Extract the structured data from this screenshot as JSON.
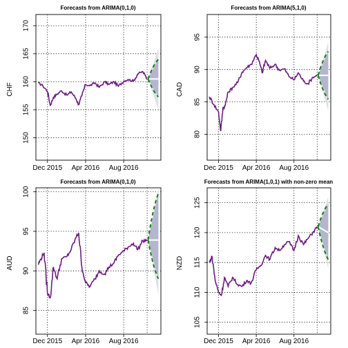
{
  "colors": {
    "series": "#6a1b7d",
    "forecast_mean": "#ffffff",
    "pi80": "#b3b6cc",
    "pi95": "#dfe0e8",
    "pi80_dashed": "#1a7a1a",
    "grid": "#000000"
  },
  "chart_data": [
    {
      "type": "line",
      "title": "Forecasts from ARIMA(0,1,0)",
      "ylabel": "CHF",
      "xlabel": "",
      "x_ticks": [
        "Dec 2015",
        "Apr 2016",
        "Aug 2016"
      ],
      "y_ticks": [
        150,
        155,
        160,
        165,
        170
      ],
      "ylim": [
        146,
        172
      ],
      "grid": true,
      "x": [
        "2015-11-01",
        "2015-11-16",
        "2015-12-01",
        "2015-12-10",
        "2015-12-20",
        "2016-01-01",
        "2016-01-15",
        "2016-02-01",
        "2016-02-15",
        "2016-03-01",
        "2016-03-10",
        "2016-03-20",
        "2016-04-01",
        "2016-04-15",
        "2016-05-01",
        "2016-05-15",
        "2016-06-01",
        "2016-06-15",
        "2016-07-01",
        "2016-07-15",
        "2016-08-01",
        "2016-08-15",
        "2016-09-01",
        "2016-09-15",
        "2016-10-01",
        "2016-10-15"
      ],
      "values": [
        159.8,
        159.3,
        158.3,
        155.8,
        157.2,
        157.8,
        158.4,
        157.6,
        158.2,
        157.0,
        155.9,
        157.5,
        159.5,
        159.3,
        159.8,
        159.0,
        160.0,
        159.5,
        160.0,
        159.2,
        160.1,
        160.4,
        160.1,
        161.4,
        161.8,
        160.5
      ],
      "forecast": {
        "x": [
          "2016-10-18",
          "2016-11-20"
        ],
        "mean": [
          160.5,
          160.5
        ],
        "lo80": [
          160.5,
          157.3
        ],
        "hi80": [
          160.5,
          164.0
        ],
        "lo95": [
          160.5,
          155.0
        ],
        "hi95": [
          160.5,
          166.0
        ]
      }
    },
    {
      "type": "line",
      "title": "Forecasts from ARIMA(5,1,0)",
      "ylabel": "CAD",
      "xlabel": "",
      "x_ticks": [
        "Dec 2015",
        "Apr 2016",
        "Aug 2016"
      ],
      "y_ticks": [
        80,
        85,
        90,
        95
      ],
      "ylim": [
        76,
        98.5
      ],
      "grid": true,
      "x": [
        "2015-11-01",
        "2015-11-16",
        "2015-12-01",
        "2015-12-08",
        "2015-12-15",
        "2015-12-22",
        "2016-01-01",
        "2016-01-15",
        "2016-02-01",
        "2016-02-15",
        "2016-03-01",
        "2016-03-15",
        "2016-04-01",
        "2016-04-10",
        "2016-04-20",
        "2016-05-01",
        "2016-05-15",
        "2016-06-01",
        "2016-06-15",
        "2016-07-01",
        "2016-07-15",
        "2016-08-01",
        "2016-08-15",
        "2016-09-01",
        "2016-09-15",
        "2016-10-01",
        "2016-10-15"
      ],
      "values": [
        85.8,
        84.6,
        83.4,
        80.5,
        84.0,
        84.4,
        86.5,
        87.2,
        88.0,
        89.6,
        90.3,
        90.8,
        92.3,
        91.3,
        89.5,
        91.4,
        90.2,
        90.8,
        89.9,
        90.1,
        89.0,
        88.4,
        89.5,
        88.2,
        87.8,
        88.8,
        89.1
      ],
      "forecast": {
        "x": [
          "2016-10-18",
          "2016-11-20"
        ],
        "mean": [
          89.1,
          89.1
        ],
        "lo80": [
          89.1,
          85.4
        ],
        "hi80": [
          89.1,
          92.8
        ],
        "lo95": [
          89.1,
          83.6
        ],
        "hi95": [
          89.1,
          94.2
        ]
      }
    },
    {
      "type": "line",
      "title": "Forecasts from ARIMA(0,1,0)",
      "ylabel": "AUD",
      "xlabel": "",
      "x_ticks": [
        "Dec 2015",
        "Apr 2016",
        "Aug 2016"
      ],
      "y_ticks": [
        85,
        90,
        95,
        100
      ],
      "ylim": [
        82,
        100.5
      ],
      "grid": true,
      "x": [
        "2015-11-01",
        "2015-11-10",
        "2015-11-20",
        "2015-12-01",
        "2015-12-10",
        "2015-12-20",
        "2016-01-01",
        "2016-01-15",
        "2016-02-01",
        "2016-02-15",
        "2016-03-01",
        "2016-03-10",
        "2016-03-20",
        "2016-04-01",
        "2016-04-15",
        "2016-05-01",
        "2016-05-15",
        "2016-06-01",
        "2016-06-15",
        "2016-07-01",
        "2016-07-15",
        "2016-08-01",
        "2016-08-15",
        "2016-09-01",
        "2016-09-15",
        "2016-10-01",
        "2016-10-15"
      ],
      "values": [
        90.8,
        91.5,
        92.3,
        87.2,
        86.6,
        90.5,
        89.0,
        91.5,
        91.8,
        92.7,
        94.2,
        94.8,
        90.5,
        88.5,
        88.0,
        89.0,
        90.0,
        89.6,
        90.5,
        91.0,
        92.0,
        92.5,
        93.0,
        93.5,
        92.7,
        93.8,
        93.9
      ],
      "forecast": {
        "x": [
          "2016-10-18",
          "2016-11-20"
        ],
        "mean": [
          93.9,
          93.9
        ],
        "lo80": [
          93.9,
          89.0
        ],
        "hi80": [
          93.9,
          99.8
        ],
        "lo95": [
          93.9,
          87.0
        ],
        "hi95": [
          93.9,
          100.5
        ]
      }
    },
    {
      "type": "line",
      "title": "Forecasts from ARIMA(1,0,1) with non-zero mean",
      "ylabel": "NZD",
      "xlabel": "",
      "x_ticks": [
        "Dec 2015",
        "Apr 2016",
        "Aug 2016"
      ],
      "y_ticks": [
        105,
        110,
        115,
        120,
        125
      ],
      "ylim": [
        103,
        127.5
      ],
      "grid": true,
      "x": [
        "2015-11-01",
        "2015-11-10",
        "2015-11-20",
        "2015-12-01",
        "2015-12-10",
        "2015-12-20",
        "2016-01-01",
        "2016-01-15",
        "2016-02-01",
        "2016-02-15",
        "2016-03-01",
        "2016-03-15",
        "2016-04-01",
        "2016-04-15",
        "2016-05-01",
        "2016-05-15",
        "2016-06-01",
        "2016-06-15",
        "2016-07-01",
        "2016-07-15",
        "2016-08-01",
        "2016-08-15",
        "2016-09-01",
        "2016-09-15",
        "2016-10-01",
        "2016-10-15"
      ],
      "values": [
        115.0,
        116.0,
        112.0,
        110.0,
        109.5,
        112.5,
        111.0,
        112.5,
        111.3,
        111.0,
        112.0,
        111.5,
        113.8,
        114.5,
        116.2,
        115.5,
        117.5,
        117.0,
        118.0,
        118.5,
        117.0,
        119.5,
        118.0,
        119.0,
        120.0,
        121.0
      ],
      "forecast": {
        "x": [
          "2016-10-18",
          "2016-11-20"
        ],
        "mean": [
          121.0,
          120.0
        ],
        "lo80": [
          121.0,
          115.5
        ],
        "hi80": [
          121.0,
          124.8
        ],
        "lo95": [
          121.0,
          114.0
        ],
        "hi95": [
          121.0,
          126.0
        ]
      }
    }
  ]
}
